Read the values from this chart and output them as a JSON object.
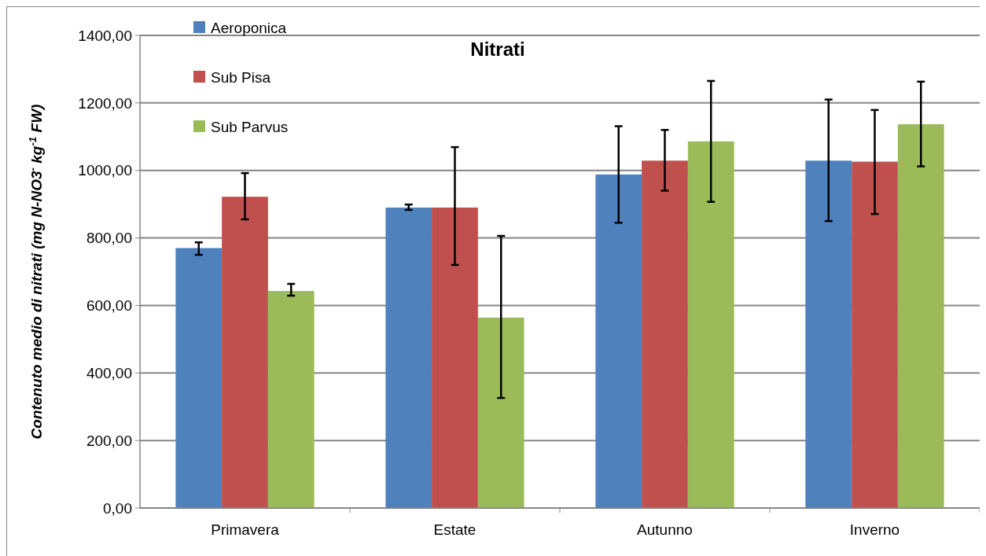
{
  "chart_data": {
    "type": "bar",
    "title": "Nitrati",
    "ylabel": "Contenuto medio di nitrati (mg N-NO3$^{-}$ kg$^{-1}$ FW)",
    "categories": [
      "Primavera",
      "Estate",
      "Autunno",
      "Inverno"
    ],
    "series": [
      {
        "name": "Aeroponica",
        "color": "#4f81bd",
        "values": [
          770,
          890,
          988,
          1029
        ],
        "errors": [
          [
            750,
            787
          ],
          [
            883,
            899
          ],
          [
            845,
            1131
          ],
          [
            850,
            1210
          ]
        ]
      },
      {
        "name": "Sub Pisa",
        "color": "#c0504d",
        "values": [
          922,
          890,
          1029,
          1026
        ],
        "errors": [
          [
            855,
            992
          ],
          [
            720,
            1069
          ],
          [
            940,
            1120
          ],
          [
            871,
            1179
          ]
        ]
      },
      {
        "name": "Sub Parvus",
        "color": "#9bbb59",
        "values": [
          643,
          564,
          1086,
          1137
        ],
        "errors": [
          [
            629,
            664
          ],
          [
            326,
            806
          ],
          [
            907,
            1265
          ],
          [
            1012,
            1263
          ]
        ]
      }
    ],
    "ylim": [
      0,
      1400
    ],
    "yticks": [
      {
        "value": 0,
        "label": "0,00"
      },
      {
        "value": 200,
        "label": "200,00"
      },
      {
        "value": 400,
        "label": "400,00"
      },
      {
        "value": 600,
        "label": "600,00"
      },
      {
        "value": 800,
        "label": "800,00"
      },
      {
        "value": 1000,
        "label": "1000,00"
      },
      {
        "value": 1200,
        "label": "1200,00"
      },
      {
        "value": 1400,
        "label": "1400,00"
      }
    ],
    "grid": "y",
    "legend": "top left"
  }
}
